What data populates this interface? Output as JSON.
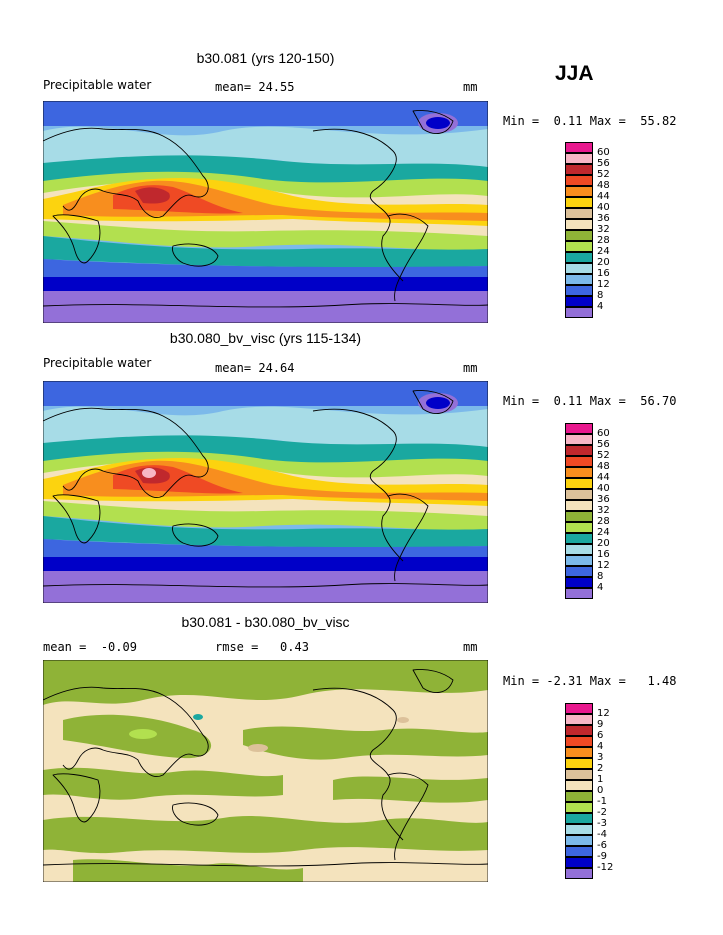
{
  "season": "JJA",
  "panels": [
    {
      "title": "b30.081 (yrs 120-150)",
      "left_label": "Precipitable water",
      "stat_label": "mean=",
      "stat_value": "24.55",
      "units": "mm",
      "min_label": "Min =",
      "min_value": "0.11",
      "max_label": "Max =",
      "max_value": "55.82"
    },
    {
      "title": "b30.080_bv_visc (yrs 115-134)",
      "left_label": "Precipitable water",
      "stat_label": "mean=",
      "stat_value": "24.64",
      "units": "mm",
      "min_label": "Min =",
      "min_value": "0.11",
      "max_label": "Max =",
      "max_value": "56.70"
    },
    {
      "title": "b30.081 - b30.080_bv_visc",
      "left_label": "mean =",
      "left_value": "-0.09",
      "stat_label": "rmse =",
      "stat_value": "0.43",
      "units": "mm",
      "min_label": "Min =",
      "min_value": "-2.31",
      "max_label": "Max =",
      "max_value": "1.48"
    }
  ],
  "colorbars": {
    "absolute": {
      "labels": [
        "60",
        "56",
        "52",
        "48",
        "44",
        "40",
        "36",
        "32",
        "28",
        "24",
        "20",
        "16",
        "12",
        "8",
        "4"
      ],
      "colors": [
        "#e8198e",
        "#f7b6c5",
        "#c0282d",
        "#ef4a24",
        "#f88e1e",
        "#fcd30f",
        "#dcc19a",
        "#f4e3bd",
        "#8fb337",
        "#b2e04f",
        "#1aa8a0",
        "#a7dce7",
        "#7cb9ea",
        "#3d66e0",
        "#0000c8",
        "#9370d8"
      ]
    },
    "difference": {
      "labels": [
        "12",
        "9",
        "6",
        "4",
        "3",
        "2",
        "1",
        "0",
        "-1",
        "-2",
        "-3",
        "-4",
        "-6",
        "-9",
        "-12"
      ],
      "colors": [
        "#e8198e",
        "#f7b6c5",
        "#c0282d",
        "#ef4a24",
        "#f88e1e",
        "#fcd30f",
        "#dcc19a",
        "#f4e3bd",
        "#8fb337",
        "#b2e04f",
        "#1aa8a0",
        "#a7dce7",
        "#7cb9ea",
        "#3d66e0",
        "#0000c8",
        "#9370d8"
      ]
    }
  }
}
